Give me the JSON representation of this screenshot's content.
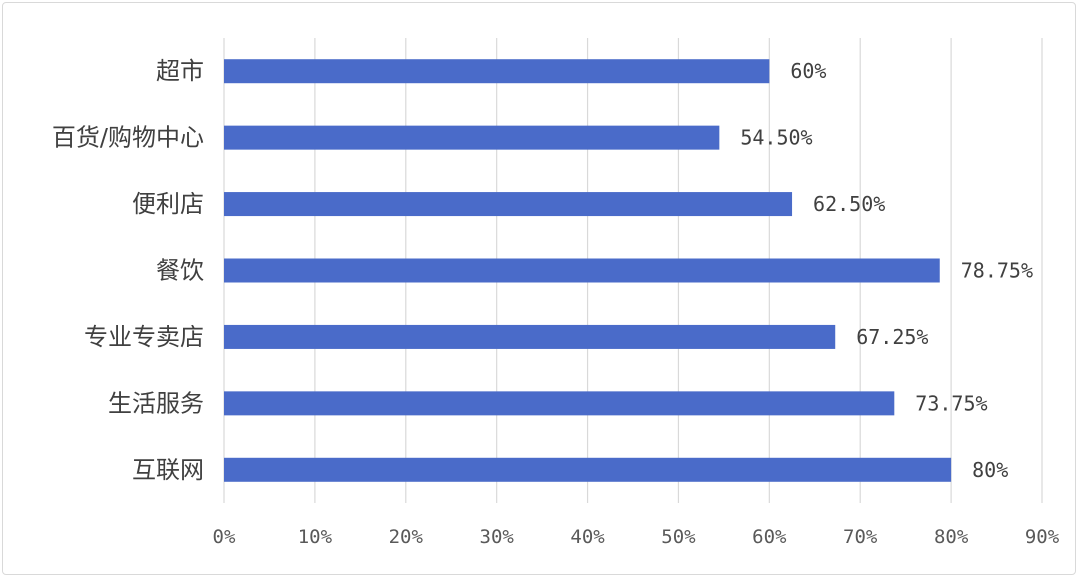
{
  "chart_data": {
    "type": "bar",
    "orientation": "horizontal",
    "categories": [
      "超市",
      "百货/购物中心",
      "便利店",
      "餐饮",
      "专业专卖店",
      "生活服务",
      "互联网"
    ],
    "values": [
      60,
      54.5,
      62.5,
      78.75,
      67.25,
      73.75,
      80
    ],
    "data_labels": [
      "60%",
      "54.50%",
      "62.50%",
      "78.75%",
      "67.25%",
      "73.75%",
      "80%"
    ],
    "xlim": [
      0,
      90
    ],
    "xticks": [
      0,
      10,
      20,
      30,
      40,
      50,
      60,
      70,
      80,
      90
    ],
    "xtick_labels": [
      "0%",
      "10%",
      "20%",
      "30%",
      "40%",
      "50%",
      "60%",
      "70%",
      "80%",
      "90%"
    ],
    "grid": "vertical",
    "legend": "none",
    "bar_color": "#4a6bc9",
    "grid_color": "#d9d9d9"
  }
}
